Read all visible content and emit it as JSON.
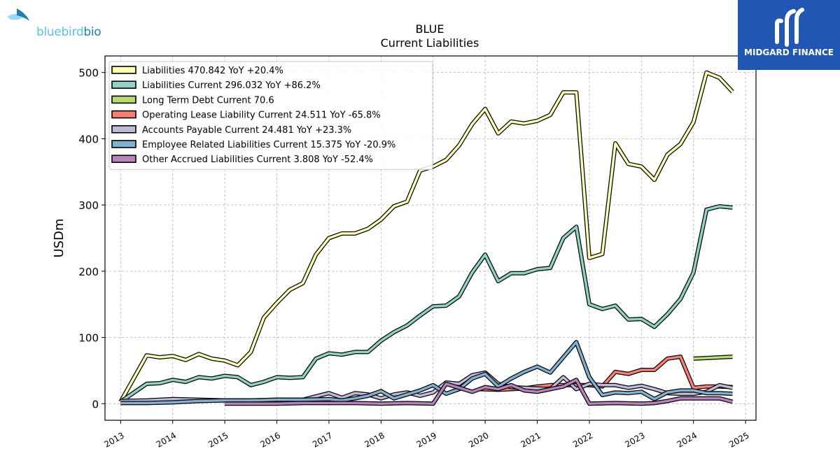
{
  "brand": {
    "left_logo_text_a": "bluebird",
    "left_logo_text_b": "bio",
    "right_logo_text": "MIDGARD FINANCE"
  },
  "chart_data": {
    "type": "line",
    "title": "BLUE",
    "subtitle": "Current  Liabilities",
    "xlabel": "",
    "ylabel": "USDm",
    "xlim": [
      2012.7,
      2025.2
    ],
    "ylim": [
      -25,
      525
    ],
    "x_ticks": [
      "2013",
      "2014",
      "2015",
      "2016",
      "2017",
      "2018",
      "2019",
      "2020",
      "2021",
      "2022",
      "2023",
      "2024",
      "2025"
    ],
    "y_ticks": [
      0,
      100,
      200,
      300,
      400,
      500
    ],
    "grid": true,
    "legend_position": "top-left",
    "series": [
      {
        "name": "Liabilities  470.842 YoY +20.4%",
        "color": "#ffffb3",
        "points": [
          [
            2013.0,
            3
          ],
          [
            2013.5,
            73
          ],
          [
            2013.75,
            70
          ],
          [
            2014.0,
            72
          ],
          [
            2014.25,
            66
          ],
          [
            2014.5,
            75
          ],
          [
            2014.75,
            68
          ],
          [
            2015.0,
            65
          ],
          [
            2015.25,
            58
          ],
          [
            2015.5,
            78
          ],
          [
            2015.75,
            130
          ],
          [
            2016.0,
            152
          ],
          [
            2016.25,
            172
          ],
          [
            2016.5,
            182
          ],
          [
            2016.75,
            225
          ],
          [
            2017.0,
            250
          ],
          [
            2017.25,
            257
          ],
          [
            2017.5,
            257
          ],
          [
            2017.75,
            264
          ],
          [
            2018.0,
            278
          ],
          [
            2018.25,
            298
          ],
          [
            2018.5,
            305
          ],
          [
            2018.75,
            352
          ],
          [
            2019.0,
            358
          ],
          [
            2019.25,
            368
          ],
          [
            2019.5,
            390
          ],
          [
            2019.75,
            422
          ],
          [
            2020.0,
            445
          ],
          [
            2020.25,
            408
          ],
          [
            2020.5,
            426
          ],
          [
            2020.75,
            423
          ],
          [
            2021.0,
            427
          ],
          [
            2021.25,
            436
          ],
          [
            2021.5,
            470
          ],
          [
            2021.75,
            470
          ],
          [
            2022.0,
            220
          ],
          [
            2022.25,
            226
          ],
          [
            2022.5,
            393
          ],
          [
            2022.75,
            362
          ],
          [
            2023.0,
            358
          ],
          [
            2023.25,
            338
          ],
          [
            2023.5,
            376
          ],
          [
            2023.75,
            392
          ],
          [
            2024.0,
            425
          ],
          [
            2024.25,
            500
          ],
          [
            2024.5,
            492
          ],
          [
            2024.75,
            471
          ]
        ]
      },
      {
        "name": "Liabilities Current  296.032 YoY +86.2%",
        "color": "#8dd3c7",
        "points": [
          [
            2013.0,
            3
          ],
          [
            2013.5,
            30
          ],
          [
            2013.75,
            31
          ],
          [
            2014.0,
            36
          ],
          [
            2014.25,
            33
          ],
          [
            2014.5,
            40
          ],
          [
            2014.75,
            38
          ],
          [
            2015.0,
            42
          ],
          [
            2015.25,
            40
          ],
          [
            2015.5,
            28
          ],
          [
            2015.75,
            33
          ],
          [
            2016.0,
            40
          ],
          [
            2016.25,
            39
          ],
          [
            2016.5,
            40
          ],
          [
            2016.75,
            68
          ],
          [
            2017.0,
            76
          ],
          [
            2017.25,
            74
          ],
          [
            2017.5,
            78
          ],
          [
            2017.75,
            78
          ],
          [
            2018.0,
            95
          ],
          [
            2018.25,
            108
          ],
          [
            2018.5,
            118
          ],
          [
            2018.75,
            133
          ],
          [
            2019.0,
            147
          ],
          [
            2019.25,
            148
          ],
          [
            2019.5,
            162
          ],
          [
            2019.75,
            198
          ],
          [
            2020.0,
            225
          ],
          [
            2020.25,
            185
          ],
          [
            2020.5,
            197
          ],
          [
            2020.75,
            197
          ],
          [
            2021.0,
            203
          ],
          [
            2021.25,
            205
          ],
          [
            2021.5,
            250
          ],
          [
            2021.75,
            267
          ],
          [
            2022.0,
            150
          ],
          [
            2022.25,
            143
          ],
          [
            2022.5,
            148
          ],
          [
            2022.75,
            127
          ],
          [
            2023.0,
            128
          ],
          [
            2023.25,
            116
          ],
          [
            2023.5,
            135
          ],
          [
            2023.75,
            158
          ],
          [
            2024.0,
            198
          ],
          [
            2024.25,
            293
          ],
          [
            2024.5,
            298
          ],
          [
            2024.75,
            296
          ]
        ]
      },
      {
        "name": "Long Term Debt Current  70.6",
        "color": "#b3de69",
        "points": [
          [
            2024.0,
            68
          ],
          [
            2024.75,
            71
          ]
        ]
      },
      {
        "name": "Operating Lease Liability Current  24.511 YoY -65.8%",
        "color": "#fb8072",
        "points": [
          [
            2019.9,
            22
          ],
          [
            2020.25,
            21
          ],
          [
            2020.5,
            22
          ],
          [
            2020.75,
            23
          ],
          [
            2021.0,
            26
          ],
          [
            2021.25,
            28
          ],
          [
            2021.5,
            28
          ],
          [
            2021.75,
            28
          ],
          [
            2022.0,
            28
          ],
          [
            2022.25,
            26
          ],
          [
            2022.5,
            48
          ],
          [
            2022.75,
            45
          ],
          [
            2023.0,
            51
          ],
          [
            2023.25,
            51
          ],
          [
            2023.5,
            68
          ],
          [
            2023.75,
            71
          ],
          [
            2024.0,
            24
          ],
          [
            2024.25,
            26
          ],
          [
            2024.5,
            26
          ],
          [
            2024.75,
            25
          ]
        ]
      },
      {
        "name": "Accounts Payable Current  24.481 YoY +23.3%",
        "color": "#bebada",
        "points": [
          [
            2013.0,
            4
          ],
          [
            2013.5,
            5
          ],
          [
            2014.0,
            7
          ],
          [
            2014.5,
            6
          ],
          [
            2015.0,
            5
          ],
          [
            2015.5,
            5
          ],
          [
            2016.0,
            6
          ],
          [
            2016.5,
            6
          ],
          [
            2017.0,
            16
          ],
          [
            2017.25,
            9
          ],
          [
            2017.5,
            16
          ],
          [
            2017.75,
            14
          ],
          [
            2018.0,
            8
          ],
          [
            2018.25,
            14
          ],
          [
            2018.5,
            17
          ],
          [
            2018.75,
            12
          ],
          [
            2019.0,
            17
          ],
          [
            2019.25,
            32
          ],
          [
            2019.5,
            30
          ],
          [
            2019.75,
            43
          ],
          [
            2020.0,
            47
          ],
          [
            2020.25,
            30
          ],
          [
            2020.5,
            25
          ],
          [
            2020.75,
            24
          ],
          [
            2021.0,
            23
          ],
          [
            2021.25,
            22
          ],
          [
            2021.5,
            40
          ],
          [
            2021.75,
            22
          ],
          [
            2022.0,
            30
          ],
          [
            2022.25,
            28
          ],
          [
            2022.5,
            28
          ],
          [
            2022.75,
            24
          ],
          [
            2023.0,
            27
          ],
          [
            2023.25,
            22
          ],
          [
            2023.5,
            16
          ],
          [
            2023.75,
            15
          ],
          [
            2024.0,
            15
          ],
          [
            2024.25,
            18
          ],
          [
            2024.5,
            28
          ],
          [
            2024.75,
            24
          ]
        ]
      },
      {
        "name": "Employee Related Liabilities Current  15.375 YoY -20.9%",
        "color": "#80b1d3",
        "points": [
          [
            2013.0,
            1
          ],
          [
            2013.5,
            1
          ],
          [
            2014.0,
            2
          ],
          [
            2014.5,
            4
          ],
          [
            2015.0,
            5
          ],
          [
            2015.5,
            5
          ],
          [
            2016.0,
            6
          ],
          [
            2016.5,
            6
          ],
          [
            2017.0,
            7
          ],
          [
            2017.25,
            5
          ],
          [
            2017.5,
            8
          ],
          [
            2017.75,
            12
          ],
          [
            2018.0,
            19
          ],
          [
            2018.25,
            8
          ],
          [
            2018.5,
            14
          ],
          [
            2018.75,
            20
          ],
          [
            2019.0,
            28
          ],
          [
            2019.25,
            15
          ],
          [
            2019.5,
            22
          ],
          [
            2019.75,
            38
          ],
          [
            2020.0,
            45
          ],
          [
            2020.25,
            26
          ],
          [
            2020.5,
            38
          ],
          [
            2020.75,
            48
          ],
          [
            2021.0,
            56
          ],
          [
            2021.25,
            47
          ],
          [
            2021.5,
            70
          ],
          [
            2021.75,
            93
          ],
          [
            2022.0,
            40
          ],
          [
            2022.25,
            13
          ],
          [
            2022.5,
            17
          ],
          [
            2022.75,
            16
          ],
          [
            2023.0,
            18
          ],
          [
            2023.25,
            7
          ],
          [
            2023.5,
            17
          ],
          [
            2023.75,
            20
          ],
          [
            2024.0,
            20
          ],
          [
            2024.25,
            16
          ],
          [
            2024.5,
            16
          ],
          [
            2024.75,
            15
          ]
        ]
      },
      {
        "name": "Other Accrued Liabilities Current  3.808 YoY -52.4%",
        "color": "#bc80bd",
        "points": [
          [
            2015.0,
            0
          ],
          [
            2015.5,
            0
          ],
          [
            2016.0,
            0
          ],
          [
            2016.5,
            1
          ],
          [
            2017.0,
            1
          ],
          [
            2017.5,
            1
          ],
          [
            2018.0,
            0
          ],
          [
            2018.5,
            1
          ],
          [
            2019.0,
            0
          ],
          [
            2019.25,
            30
          ],
          [
            2019.5,
            24
          ],
          [
            2019.75,
            18
          ],
          [
            2020.0,
            25
          ],
          [
            2020.25,
            22
          ],
          [
            2020.5,
            28
          ],
          [
            2020.75,
            20
          ],
          [
            2021.0,
            18
          ],
          [
            2021.25,
            22
          ],
          [
            2021.5,
            26
          ],
          [
            2021.75,
            36
          ],
          [
            2022.0,
            0
          ],
          [
            2022.5,
            1
          ],
          [
            2023.0,
            0
          ],
          [
            2023.25,
            1
          ],
          [
            2023.5,
            4
          ],
          [
            2023.75,
            8
          ],
          [
            2024.0,
            8
          ],
          [
            2024.25,
            8
          ],
          [
            2024.5,
            8
          ],
          [
            2024.75,
            3
          ]
        ]
      }
    ]
  }
}
